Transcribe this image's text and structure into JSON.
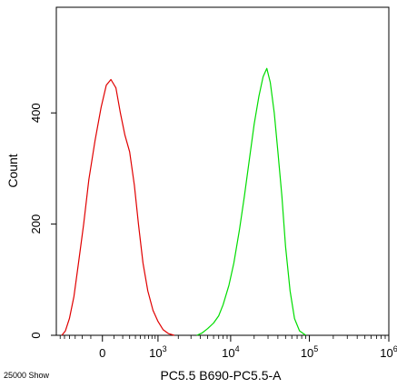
{
  "chart_data": {
    "type": "line",
    "xlabel": "PC5.5 B690-PC5.5-A",
    "ylabel": "Count",
    "footnote": "25000 Show",
    "x_axis_scale": "biexponential",
    "xlim": [
      -700,
      1000000
    ],
    "ylim": [
      0,
      590
    ],
    "y_ticks": [
      0,
      200,
      400
    ],
    "x_ticks": [
      {
        "value": 0,
        "label": "0"
      },
      {
        "value": 1000,
        "base": "10",
        "exp": "3"
      },
      {
        "value": 10000,
        "base": "10",
        "exp": "4"
      },
      {
        "value": 100000,
        "base": "10",
        "exp": "5"
      },
      {
        "value": 1000000,
        "base": "10",
        "exp": "6"
      }
    ],
    "grid": false,
    "series": [
      {
        "color": "#e00000",
        "x": [
          -560,
          -480,
          -400,
          -320,
          -250,
          -180,
          -120,
          -60,
          -10,
          30,
          70,
          120,
          170,
          230,
          300,
          380,
          460,
          560,
          680,
          830,
          1000,
          1200,
          1450,
          1750
        ],
        "y": [
          0,
          8,
          30,
          70,
          130,
          200,
          280,
          350,
          410,
          450,
          460,
          445,
          400,
          360,
          330,
          270,
          200,
          130,
          80,
          45,
          25,
          10,
          3,
          0
        ]
      },
      {
        "color": "#00dd00",
        "x": [
          3600,
          4200,
          5000,
          6000,
          7000,
          8000,
          9500,
          11000,
          13000,
          15000,
          17500,
          20000,
          23000,
          26000,
          29000,
          32000,
          36000,
          40000,
          45000,
          50000,
          57000,
          65000,
          75000,
          90000
        ],
        "y": [
          0,
          4,
          12,
          22,
          35,
          55,
          90,
          130,
          190,
          250,
          320,
          380,
          430,
          465,
          480,
          455,
          400,
          330,
          250,
          160,
          80,
          30,
          8,
          0
        ]
      }
    ]
  }
}
